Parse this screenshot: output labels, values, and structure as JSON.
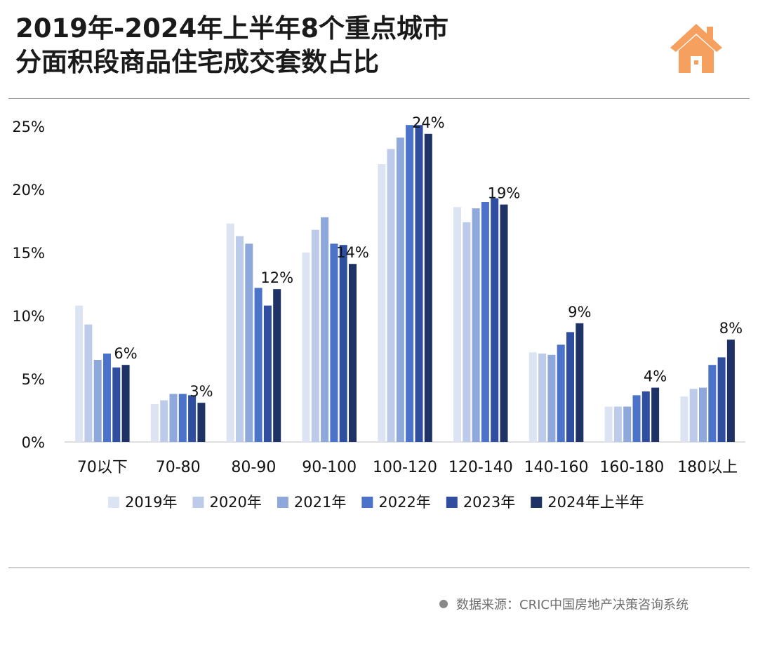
{
  "title_line_1": "2019年-2024年上半年8个重点城市",
  "title_line_2": "分面积段商品住宅成交套数占比",
  "logo_icon": "house-icon",
  "accent_color": "#F5A05E",
  "source": "数据来源：CRIC中国房地产决策咨询系统",
  "chart_data": {
    "type": "bar",
    "title": "2019年-2024年上半年8个重点城市分面积段商品住宅成交套数占比",
    "xlabel": "",
    "ylabel": "",
    "ylim": [
      0,
      25
    ],
    "yticks": [
      "0%",
      "5%",
      "10%",
      "15%",
      "20%",
      "25%"
    ],
    "grid": false,
    "legend_position": "bottom",
    "categories": [
      "70以下",
      "70-80",
      "80-90",
      "90-100",
      "100-120",
      "120-140",
      "140-160",
      "160-180",
      "180以上"
    ],
    "series": [
      {
        "name": "2019年",
        "color": "#DCE4F3",
        "values": [
          10.8,
          3.0,
          17.3,
          15.0,
          22.0,
          18.6,
          7.1,
          2.8,
          3.6
        ]
      },
      {
        "name": "2020年",
        "color": "#BCCBEA",
        "values": [
          9.3,
          3.3,
          16.3,
          16.8,
          23.2,
          17.4,
          7.0,
          2.8,
          4.2
        ]
      },
      {
        "name": "2021年",
        "color": "#8FA8DB",
        "values": [
          6.5,
          3.8,
          15.7,
          17.8,
          24.1,
          18.5,
          6.9,
          2.8,
          4.3
        ]
      },
      {
        "name": "2022年",
        "color": "#4A73C9",
        "values": [
          7.0,
          3.8,
          12.2,
          15.7,
          25.1,
          19.0,
          7.7,
          3.7,
          6.1
        ]
      },
      {
        "name": "2023年",
        "color": "#2F4E9F",
        "values": [
          5.9,
          3.7,
          10.8,
          15.6,
          25.1,
          19.3,
          8.7,
          4.0,
          6.7
        ]
      },
      {
        "name": "2024年上半年",
        "color": "#1F3266",
        "values": [
          6.1,
          3.1,
          12.1,
          14.1,
          24.4,
          18.8,
          9.4,
          4.3,
          8.1
        ]
      }
    ],
    "data_labels": [
      "6%",
      "3%",
      "12%",
      "14%",
      "24%",
      "19%",
      "9%",
      "4%",
      "8%"
    ],
    "data_labels_series": "2024年上半年"
  }
}
